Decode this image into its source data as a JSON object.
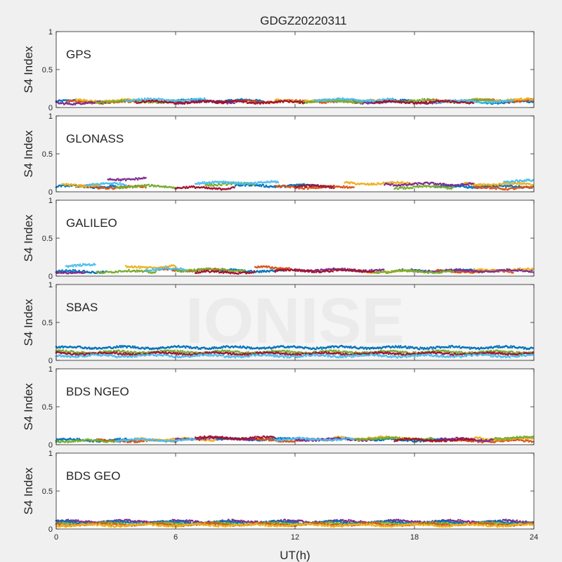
{
  "chart_data": {
    "type": "scatter",
    "title": "GDGZ20220311",
    "xlabel": "UT(h)",
    "ylabel": "S4 Index",
    "xlim": [
      0,
      24
    ],
    "ylim": [
      0,
      1
    ],
    "xticks": [
      "0",
      "6",
      "12",
      "18",
      "24"
    ],
    "yticks": [
      "0",
      "0.5",
      "1"
    ],
    "grid": false,
    "watermark": "IONISE",
    "colors": [
      "#0072BD",
      "#D95319",
      "#EDB120",
      "#7E2F8E",
      "#77AC30",
      "#4DBEEE",
      "#A2142F"
    ],
    "panels": [
      {
        "name": "GPS",
        "series": [
          {
            "color": "#0072BD",
            "arcs": [
              [
                0.0,
                3.2,
                0.08
              ],
              [
                6.0,
                10.5,
                0.09
              ],
              [
                14.0,
                18.0,
                0.08
              ],
              [
                20.0,
                24.0,
                0.07
              ]
            ]
          },
          {
            "color": "#D95319",
            "arcs": [
              [
                0.5,
                4.0,
                0.07
              ],
              [
                9.0,
                14.0,
                0.08
              ],
              [
                18.5,
                24.0,
                0.09
              ]
            ]
          },
          {
            "color": "#EDB120",
            "arcs": [
              [
                1.0,
                5.0,
                0.09
              ],
              [
                11.0,
                16.5,
                0.09
              ],
              [
                21.0,
                24.0,
                0.1
              ]
            ]
          },
          {
            "color": "#7E2F8E",
            "arcs": [
              [
                0.0,
                2.5,
                0.06
              ],
              [
                5.5,
                9.0,
                0.07
              ],
              [
                15.0,
                20.0,
                0.07
              ]
            ]
          },
          {
            "color": "#77AC30",
            "arcs": [
              [
                2.0,
                6.5,
                0.08
              ],
              [
                12.0,
                15.5,
                0.08
              ],
              [
                17.0,
                22.0,
                0.09
              ]
            ]
          },
          {
            "color": "#4DBEEE",
            "arcs": [
              [
                3.5,
                7.5,
                0.1
              ],
              [
                13.0,
                17.0,
                0.1
              ],
              [
                19.0,
                23.0,
                0.08
              ]
            ]
          },
          {
            "color": "#A2142F",
            "arcs": [
              [
                4.0,
                8.5,
                0.07
              ],
              [
                8.0,
                12.5,
                0.07
              ],
              [
                16.0,
                21.0,
                0.07
              ]
            ]
          }
        ]
      },
      {
        "name": "GLONASS",
        "series": [
          {
            "color": "#0072BD",
            "arcs": [
              [
                0.0,
                3.0,
                0.07
              ],
              [
                9.0,
                13.5,
                0.08
              ],
              [
                19.0,
                24.0,
                0.07
              ]
            ]
          },
          {
            "color": "#D95319",
            "arcs": [
              [
                1.0,
                4.5,
                0.06
              ],
              [
                11.0,
                15.0,
                0.06
              ],
              [
                21.0,
                24.0,
                0.05
              ]
            ]
          },
          {
            "color": "#EDB120",
            "arcs": [
              [
                0.3,
                2.2,
                0.09
              ],
              [
                14.5,
                18.0,
                0.11
              ],
              [
                20.5,
                24.0,
                0.1
              ]
            ]
          },
          {
            "color": "#7E2F8E",
            "arcs": [
              [
                2.6,
                4.5,
                0.17
              ],
              [
                16.5,
                21.0,
                0.1
              ]
            ]
          },
          {
            "color": "#77AC30",
            "arcs": [
              [
                3.0,
                6.0,
                0.07
              ],
              [
                7.5,
                10.0,
                0.1
              ],
              [
                17.0,
                20.0,
                0.06
              ]
            ]
          },
          {
            "color": "#4DBEEE",
            "arcs": [
              [
                1.5,
                3.5,
                0.1
              ],
              [
                7.0,
                11.2,
                0.12
              ],
              [
                22.5,
                24.0,
                0.14
              ]
            ]
          },
          {
            "color": "#A2142F",
            "arcs": [
              [
                6.0,
                9.0,
                0.05
              ],
              [
                12.0,
                14.0,
                0.07
              ]
            ]
          }
        ]
      },
      {
        "name": "GALILEO",
        "series": [
          {
            "color": "#0072BD",
            "arcs": [
              [
                0.0,
                2.5,
                0.06
              ],
              [
                8.0,
                11.5,
                0.07
              ],
              [
                17.0,
                21.0,
                0.07
              ]
            ]
          },
          {
            "color": "#D95319",
            "arcs": [
              [
                5.0,
                8.5,
                0.08
              ],
              [
                10.0,
                11.8,
                0.11
              ],
              [
                19.0,
                23.0,
                0.06
              ]
            ]
          },
          {
            "color": "#EDB120",
            "arcs": [
              [
                3.5,
                6.0,
                0.12
              ],
              [
                15.0,
                18.0,
                0.06
              ],
              [
                21.0,
                24.0,
                0.08
              ]
            ]
          },
          {
            "color": "#7E2F8E",
            "arcs": [
              [
                0.0,
                1.5,
                0.05
              ],
              [
                12.0,
                16.5,
                0.08
              ],
              [
                18.0,
                24.0,
                0.07
              ]
            ]
          },
          {
            "color": "#77AC30",
            "arcs": [
              [
                2.0,
                5.0,
                0.06
              ],
              [
                6.0,
                9.5,
                0.08
              ],
              [
                16.0,
                20.0,
                0.06
              ]
            ]
          },
          {
            "color": "#4DBEEE",
            "arcs": [
              [
                0.5,
                2.0,
                0.14
              ],
              [
                4.5,
                6.5,
                0.09
              ]
            ]
          },
          {
            "color": "#A2142F",
            "arcs": [
              [
                7.0,
                10.0,
                0.05
              ],
              [
                11.0,
                16.0,
                0.07
              ]
            ]
          }
        ]
      },
      {
        "name": "SBAS",
        "series": [
          {
            "color": "#0072BD",
            "arcs": [
              [
                0.0,
                24.0,
                0.17
              ]
            ]
          },
          {
            "color": "#77AC30",
            "arcs": [
              [
                0.0,
                24.0,
                0.11
              ]
            ]
          },
          {
            "color": "#A2142F",
            "arcs": [
              [
                0.0,
                24.0,
                0.09
              ]
            ]
          },
          {
            "color": "#4DBEEE",
            "arcs": [
              [
                0.0,
                24.0,
                0.06
              ]
            ]
          }
        ]
      },
      {
        "name": "BDS NGEO",
        "series": [
          {
            "color": "#0072BD",
            "arcs": [
              [
                0.0,
                4.0,
                0.06
              ],
              [
                8.0,
                12.0,
                0.07
              ],
              [
                16.0,
                20.0,
                0.06
              ]
            ]
          },
          {
            "color": "#D95319",
            "arcs": [
              [
                2.0,
                6.0,
                0.05
              ],
              [
                10.0,
                14.0,
                0.06
              ],
              [
                20.0,
                24.0,
                0.05
              ]
            ]
          },
          {
            "color": "#EDB120",
            "arcs": [
              [
                4.0,
                8.0,
                0.07
              ],
              [
                14.0,
                18.0,
                0.09
              ],
              [
                21.0,
                24.0,
                0.08
              ]
            ]
          },
          {
            "color": "#7E2F8E",
            "arcs": [
              [
                6.0,
                10.0,
                0.08
              ],
              [
                12.0,
                16.0,
                0.07
              ],
              [
                18.0,
                22.0,
                0.07
              ]
            ]
          },
          {
            "color": "#77AC30",
            "arcs": [
              [
                0.0,
                3.0,
                0.05
              ],
              [
                15.0,
                19.0,
                0.08
              ],
              [
                22.0,
                24.0,
                0.09
              ]
            ]
          },
          {
            "color": "#4DBEEE",
            "arcs": [
              [
                3.0,
                7.0,
                0.06
              ],
              [
                11.0,
                15.0,
                0.07
              ]
            ]
          },
          {
            "color": "#A2142F",
            "arcs": [
              [
                7.0,
                11.0,
                0.09
              ],
              [
                17.0,
                21.0,
                0.06
              ]
            ]
          }
        ]
      },
      {
        "name": "BDS GEO",
        "series": [
          {
            "color": "#7E2F8E",
            "arcs": [
              [
                0.0,
                24.0,
                0.1
              ]
            ]
          },
          {
            "color": "#0072BD",
            "arcs": [
              [
                0.0,
                24.0,
                0.085
              ]
            ]
          },
          {
            "color": "#77AC30",
            "arcs": [
              [
                0.0,
                24.0,
                0.07
              ]
            ]
          },
          {
            "color": "#D95319",
            "arcs": [
              [
                0.0,
                24.0,
                0.06
              ]
            ]
          },
          {
            "color": "#EDB120",
            "arcs": [
              [
                0.0,
                24.0,
                0.05
              ]
            ]
          }
        ]
      }
    ]
  }
}
